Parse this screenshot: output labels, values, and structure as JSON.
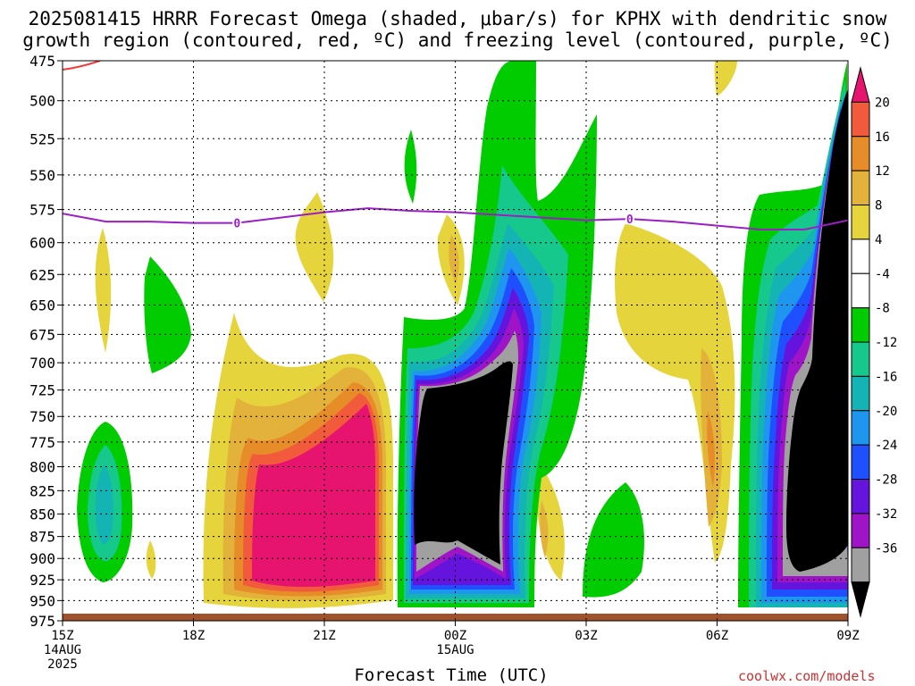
{
  "title": {
    "line1": "2025081415 HRRR Forecast Omega (shaded, μbar/s) for KPHX with dendritic snow",
    "line2": "growth region (contoured, red, ºC) and freezing level (contoured, purple, ºC)"
  },
  "watermark": "coolwx.com/models",
  "colors": {
    "shade_pos_4": "#e6d43c",
    "shade_pos_8": "#e3b23a",
    "shade_pos_12": "#e68c28",
    "shade_pos_16": "#f25a3c",
    "shade_pos_20": "#e6146e",
    "shade_neg_4": "#00cc00",
    "shade_neg_8": "#16c88c",
    "shade_neg_12": "#14b4b4",
    "shade_neg_16": "#1e96f0",
    "shade_neg_20": "#1e50ff",
    "shade_neg_24": "#6414dc",
    "shade_neg_28": "#a014c8",
    "shade_neg_32": "#a0a0a0",
    "shade_neg_36": "#000000",
    "freezing_level": "#9b1fc4",
    "dendritic": "#f03c3c",
    "ground": "#a0522d"
  },
  "chart_data": {
    "type": "heatmap",
    "title": "2025081415 HRRR Forecast Omega (shaded, μbar/s) for KPHX with dendritic snow growth region (contoured, red, ºC) and freezing level (contoured, purple, ºC)",
    "xlabel": "Forecast Time (UTC)",
    "ylabel": "",
    "x_ticks": [
      {
        "label": "15Z",
        "sub": [
          "14AUG",
          "2025"
        ]
      },
      {
        "label": "18Z",
        "sub": []
      },
      {
        "label": "21Z",
        "sub": []
      },
      {
        "label": "00Z",
        "sub": [
          "15AUG"
        ]
      },
      {
        "label": "03Z",
        "sub": []
      },
      {
        "label": "06Z",
        "sub": []
      },
      {
        "label": "09Z",
        "sub": []
      }
    ],
    "x_range_hours": [
      0,
      18
    ],
    "y_ticks_mb": [
      475,
      500,
      525,
      550,
      575,
      600,
      625,
      650,
      675,
      700,
      725,
      750,
      775,
      800,
      825,
      850,
      875,
      900,
      925,
      950,
      975
    ],
    "y_range_mb": [
      475,
      975
    ],
    "y_scale": "log-pressure",
    "grid": true,
    "colorbar": {
      "labels": [
        "20",
        "16",
        "12",
        "8",
        "4",
        "-4",
        "-8",
        "-12",
        "-16",
        "-20",
        "-24",
        "-28",
        "-32",
        "-36"
      ],
      "levels": [
        20,
        16,
        12,
        8,
        4,
        -4,
        -8,
        -12,
        -16,
        -20,
        -24,
        -28,
        -32,
        -36
      ]
    },
    "freezing_level": {
      "label": "0",
      "hours": [
        0,
        1,
        2,
        3,
        4,
        5,
        6,
        7,
        8,
        9,
        10,
        11,
        12,
        13,
        14,
        15,
        16,
        17,
        18
      ],
      "mb": [
        578,
        584,
        584,
        585,
        585,
        581,
        577,
        574,
        576,
        577,
        579,
        581,
        583,
        582,
        584,
        587,
        590,
        590,
        583
      ],
      "label_hours": [
        4,
        13
      ]
    },
    "regions": [
      {
        "level": 4,
        "hour_range": [
          12.8,
          15.0
        ],
        "mb_range": [
          590,
          880
        ],
        "note": "upward"
      },
      {
        "level": 20,
        "hour_range": [
          4.2,
          7.3
        ],
        "mb_range": [
          735,
          940
        ]
      },
      {
        "level": -36,
        "hour_range": [
          8.0,
          9.3
        ],
        "mb_range": [
          720,
          915
        ]
      },
      {
        "level": -36,
        "hour_range": [
          16.6,
          18.0
        ],
        "mb_range": [
          475,
          915
        ]
      },
      {
        "level": -12,
        "hour_range": [
          0.7,
          1.2
        ],
        "mb_range": [
          790,
          915
        ]
      }
    ]
  }
}
